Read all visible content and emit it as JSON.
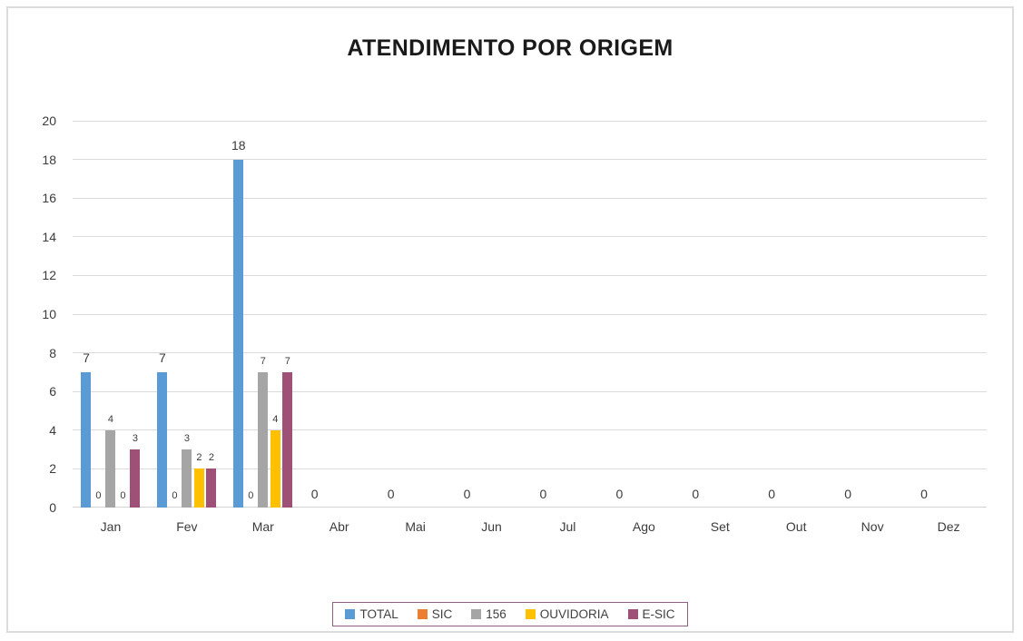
{
  "chart_data": {
    "type": "bar",
    "title": "ATENDIMENTO POR ORIGEM",
    "categories": [
      "Jan",
      "Fev",
      "Mar",
      "Abr",
      "Mai",
      "Jun",
      "Jul",
      "Ago",
      "Set",
      "Out",
      "Nov",
      "Dez"
    ],
    "series": [
      {
        "name": "TOTAL",
        "color": "#5B9BD5",
        "values": [
          7,
          7,
          18,
          0,
          0,
          0,
          0,
          0,
          0,
          0,
          0,
          0
        ]
      },
      {
        "name": "SIC",
        "color": "#ED7D31",
        "values": [
          0,
          0,
          0,
          null,
          null,
          null,
          null,
          null,
          null,
          null,
          null,
          null
        ]
      },
      {
        "name": "156",
        "color": "#A5A5A5",
        "values": [
          4,
          3,
          7,
          null,
          null,
          null,
          null,
          null,
          null,
          null,
          null,
          null
        ]
      },
      {
        "name": "OUVIDORIA",
        "color": "#FFC000",
        "values": [
          0,
          2,
          4,
          null,
          null,
          null,
          null,
          null,
          null,
          null,
          null,
          null
        ]
      },
      {
        "name": "E-SIC",
        "color": "#9E5077",
        "values": [
          3,
          2,
          7,
          null,
          null,
          null,
          null,
          null,
          null,
          null,
          null,
          null
        ]
      }
    ],
    "ylim": [
      0,
      20
    ],
    "ytick_step": 2,
    "yticks": [
      0,
      2,
      4,
      6,
      8,
      10,
      12,
      14,
      16,
      18,
      20
    ],
    "grid": true,
    "data_labels": true,
    "legend_position": "bottom",
    "colors": {
      "gridline": "#DBDBDB",
      "axis_line": "#D2D2D2",
      "tick_label": "#3B3B3B",
      "data_label": "#3B3B3B",
      "title": "#1A1A1A",
      "legend_border": "#8E607F",
      "chart_frame_border": "#DCDCDC",
      "background": "#FFFFFF"
    }
  }
}
